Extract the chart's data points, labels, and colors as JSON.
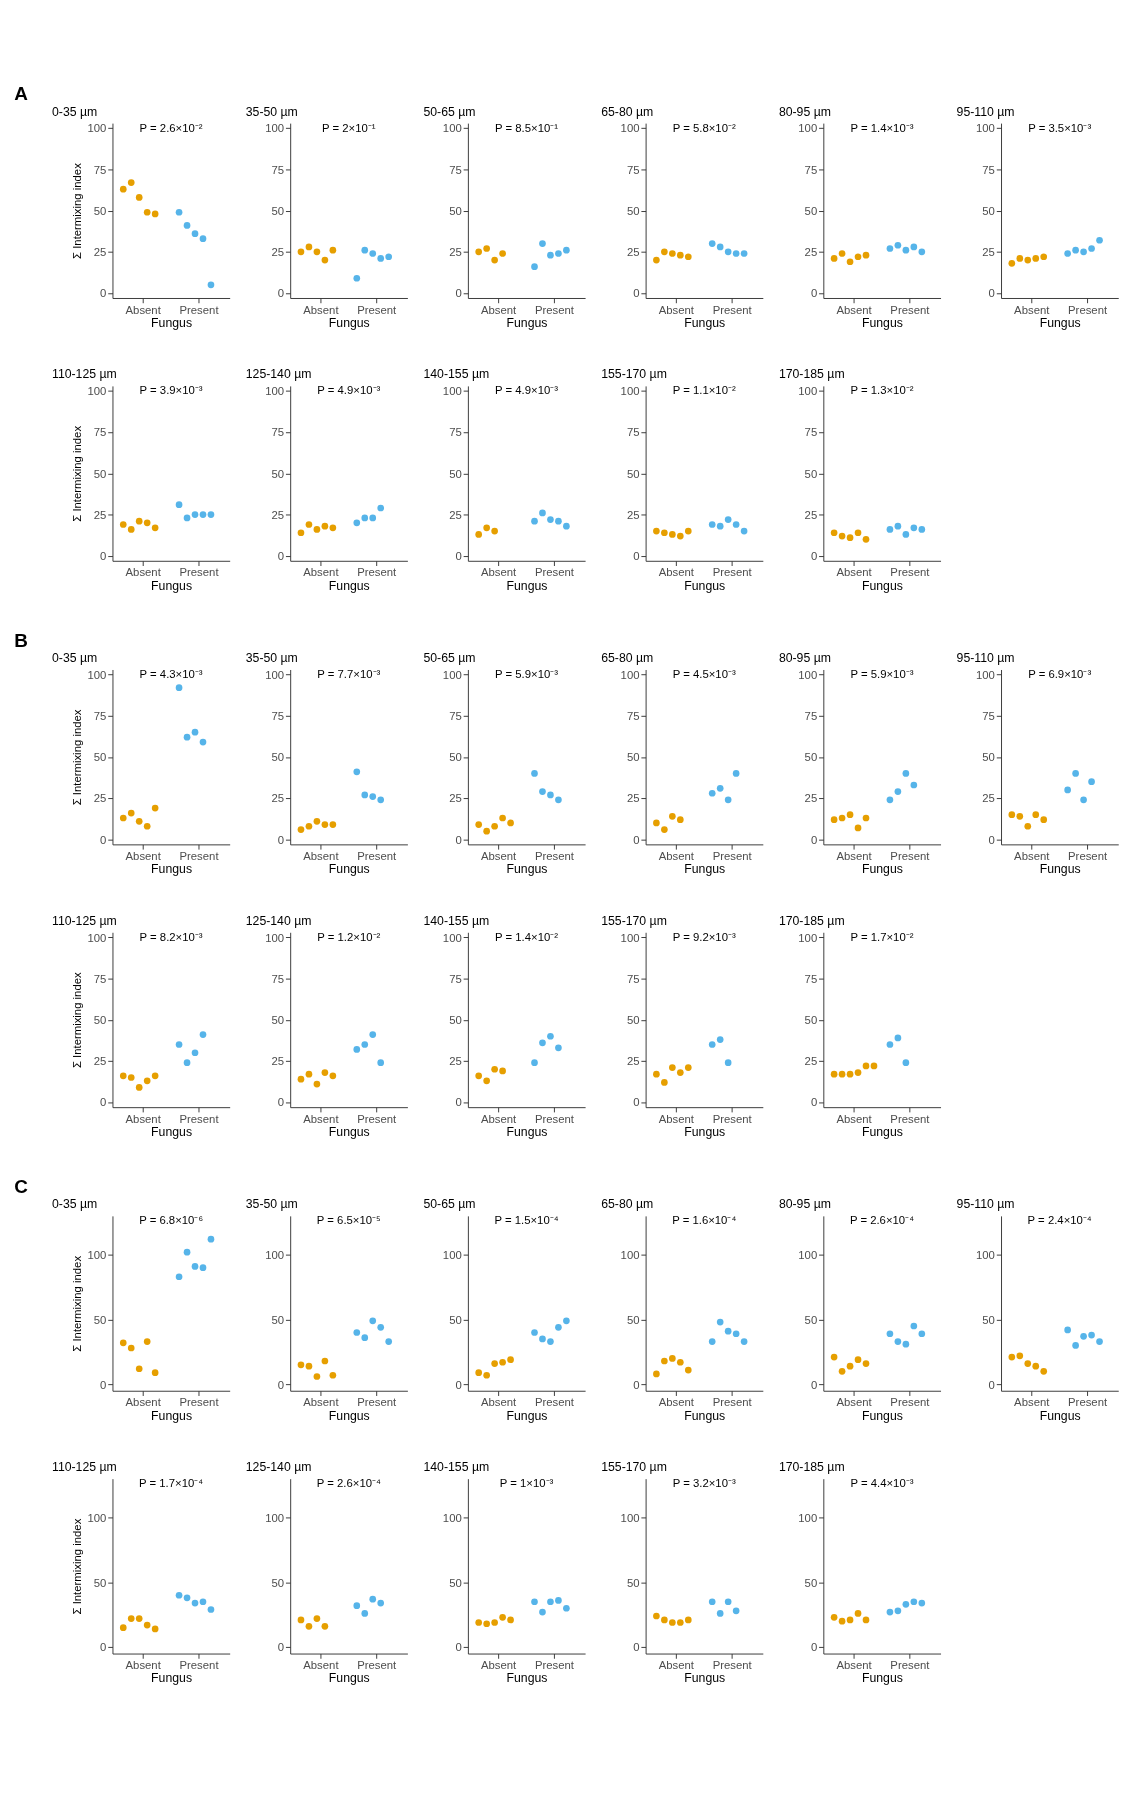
{
  "chart_data": [
    {
      "type": "scatter",
      "title": "0-35 µm",
      "ylabel": "Σ Intermixing index",
      "xlabel": "Fungus",
      "annotations": [
        "A",
        "P = 2.6×10⁻²"
      ],
      "categories": [
        "Absent",
        "Present"
      ],
      "ylim": [
        -3,
        103
      ],
      "yticks": [
        0,
        25,
        50,
        75,
        100
      ],
      "grid": false,
      "legend": false,
      "marker": "circle",
      "series": [
        {
          "color": "#e69f00",
          "x": [
            "Absent",
            "Absent",
            "Absent",
            "Absent",
            "Absent"
          ],
          "values": [
            63,
            67,
            58,
            49,
            48
          ]
        },
        {
          "color": "#56b4e9",
          "x": [
            "Present",
            "Present",
            "Present",
            "Present",
            "Present"
          ],
          "values": [
            49,
            41,
            36,
            33,
            5
          ]
        }
      ]
    },
    {
      "type": "scatter",
      "title": "35-50 µm",
      "xlabel": "Fungus",
      "annotations": [
        "P = 2×10⁻¹"
      ],
      "categories": [
        "Absent",
        "Present"
      ],
      "ylim": [
        -3,
        103
      ],
      "yticks": [
        0,
        25,
        50,
        75,
        100
      ],
      "grid": false,
      "legend": false,
      "marker": "circle",
      "series": [
        {
          "color": "#e69f00",
          "x": [
            "Absent",
            "Absent",
            "Absent",
            "Absent",
            "Absent"
          ],
          "values": [
            25,
            28,
            25,
            20,
            26
          ]
        },
        {
          "color": "#56b4e9",
          "x": [
            "Present",
            "Present",
            "Present",
            "Present",
            "Present"
          ],
          "values": [
            9,
            26,
            24,
            21,
            22
          ]
        }
      ]
    },
    {
      "type": "scatter",
      "title": "50-65 µm",
      "xlabel": "Fungus",
      "annotations": [
        "P = 8.5×10⁻¹"
      ],
      "categories": [
        "Absent",
        "Present"
      ],
      "ylim": [
        -3,
        103
      ],
      "yticks": [
        0,
        25,
        50,
        75,
        100
      ],
      "grid": false,
      "legend": false,
      "marker": "circle",
      "series": [
        {
          "color": "#e69f00",
          "x": [
            "Absent",
            "Absent",
            "Absent",
            "Absent"
          ],
          "values": [
            25,
            27,
            20,
            24
          ]
        },
        {
          "color": "#56b4e9",
          "x": [
            "Present",
            "Present",
            "Present",
            "Present",
            "Present"
          ],
          "values": [
            16,
            30,
            23,
            24,
            26
          ]
        }
      ]
    },
    {
      "type": "scatter",
      "title": "65-80 µm",
      "xlabel": "Fungus",
      "annotations": [
        "P = 5.8×10⁻²"
      ],
      "categories": [
        "Absent",
        "Present"
      ],
      "ylim": [
        -3,
        103
      ],
      "yticks": [
        0,
        25,
        50,
        75,
        100
      ],
      "grid": false,
      "legend": false,
      "marker": "circle",
      "series": [
        {
          "color": "#e69f00",
          "x": [
            "Absent",
            "Absent",
            "Absent",
            "Absent",
            "Absent"
          ],
          "values": [
            20,
            25,
            24,
            23,
            22
          ]
        },
        {
          "color": "#56b4e9",
          "x": [
            "Present",
            "Present",
            "Present",
            "Present",
            "Present"
          ],
          "values": [
            30,
            28,
            25,
            24,
            24
          ]
        }
      ]
    },
    {
      "type": "scatter",
      "title": "80-95 µm",
      "xlabel": "Fungus",
      "annotations": [
        "P = 1.4×10⁻³"
      ],
      "categories": [
        "Absent",
        "Present"
      ],
      "ylim": [
        -3,
        103
      ],
      "yticks": [
        0,
        25,
        50,
        75,
        100
      ],
      "grid": false,
      "legend": false,
      "marker": "circle",
      "series": [
        {
          "color": "#e69f00",
          "x": [
            "Absent",
            "Absent",
            "Absent",
            "Absent",
            "Absent"
          ],
          "values": [
            21,
            24,
            19,
            22,
            23
          ]
        },
        {
          "color": "#56b4e9",
          "x": [
            "Present",
            "Present",
            "Present",
            "Present",
            "Present"
          ],
          "values": [
            27,
            29,
            26,
            28,
            25
          ]
        }
      ]
    },
    {
      "type": "scatter",
      "title": "95-110 µm",
      "xlabel": "Fungus",
      "annotations": [
        "P = 3.5×10⁻³"
      ],
      "categories": [
        "Absent",
        "Present"
      ],
      "ylim": [
        -3,
        103
      ],
      "yticks": [
        0,
        25,
        50,
        75,
        100
      ],
      "grid": false,
      "legend": false,
      "marker": "circle",
      "series": [
        {
          "color": "#e69f00",
          "x": [
            "Absent",
            "Absent",
            "Absent",
            "Absent",
            "Absent"
          ],
          "values": [
            18,
            21,
            20,
            21,
            22
          ]
        },
        {
          "color": "#56b4e9",
          "x": [
            "Present",
            "Present",
            "Present",
            "Present",
            "Present"
          ],
          "values": [
            24,
            26,
            25,
            27,
            32
          ]
        }
      ]
    },
    {
      "type": "scatter",
      "title": "110-125 µm",
      "ylabel": "Σ Intermixing index",
      "xlabel": "Fungus",
      "annotations": [
        "P = 3.9×10⁻³"
      ],
      "categories": [
        "Absent",
        "Present"
      ],
      "ylim": [
        -3,
        103
      ],
      "yticks": [
        0,
        25,
        50,
        75,
        100
      ],
      "grid": false,
      "legend": false,
      "marker": "circle",
      "series": [
        {
          "color": "#e69f00",
          "x": [
            "Absent",
            "Absent",
            "Absent",
            "Absent",
            "Absent"
          ],
          "values": [
            19,
            16,
            21,
            20,
            17
          ]
        },
        {
          "color": "#56b4e9",
          "x": [
            "Present",
            "Present",
            "Present",
            "Present",
            "Present"
          ],
          "values": [
            31,
            23,
            25,
            25,
            25
          ]
        }
      ]
    },
    {
      "type": "scatter",
      "title": "125-140 µm",
      "xlabel": "Fungus",
      "annotations": [
        "P = 4.9×10⁻³"
      ],
      "categories": [
        "Absent",
        "Present"
      ],
      "ylim": [
        -3,
        103
      ],
      "yticks": [
        0,
        25,
        50,
        75,
        100
      ],
      "grid": false,
      "legend": false,
      "marker": "circle",
      "series": [
        {
          "color": "#e69f00",
          "x": [
            "Absent",
            "Absent",
            "Absent",
            "Absent",
            "Absent"
          ],
          "values": [
            14,
            19,
            16,
            18,
            17
          ]
        },
        {
          "color": "#56b4e9",
          "x": [
            "Present",
            "Present",
            "Present",
            "Present"
          ],
          "values": [
            20,
            23,
            23,
            29
          ]
        }
      ]
    },
    {
      "type": "scatter",
      "title": "140-155 µm",
      "xlabel": "Fungus",
      "annotations": [
        "P = 4.9×10⁻³"
      ],
      "categories": [
        "Absent",
        "Present"
      ],
      "ylim": [
        -3,
        103
      ],
      "yticks": [
        0,
        25,
        50,
        75,
        100
      ],
      "grid": false,
      "legend": false,
      "marker": "circle",
      "series": [
        {
          "color": "#e69f00",
          "x": [
            "Absent",
            "Absent",
            "Absent"
          ],
          "values": [
            13,
            17,
            15
          ]
        },
        {
          "color": "#56b4e9",
          "x": [
            "Present",
            "Present",
            "Present",
            "Present",
            "Present"
          ],
          "values": [
            21,
            26,
            22,
            21,
            18
          ]
        }
      ]
    },
    {
      "type": "scatter",
      "title": "155-170 µm",
      "xlabel": "Fungus",
      "annotations": [
        "P = 1.1×10⁻²"
      ],
      "categories": [
        "Absent",
        "Present"
      ],
      "ylim": [
        -3,
        103
      ],
      "yticks": [
        0,
        25,
        50,
        75,
        100
      ],
      "grid": false,
      "legend": false,
      "marker": "circle",
      "series": [
        {
          "color": "#e69f00",
          "x": [
            "Absent",
            "Absent",
            "Absent",
            "Absent",
            "Absent"
          ],
          "values": [
            15,
            14,
            13,
            12,
            15
          ]
        },
        {
          "color": "#56b4e9",
          "x": [
            "Present",
            "Present",
            "Present",
            "Present",
            "Present"
          ],
          "values": [
            19,
            18,
            22,
            19,
            15
          ]
        }
      ]
    },
    {
      "type": "scatter",
      "title": "170-185 µm",
      "xlabel": "Fungus",
      "annotations": [
        "P = 1.3×10⁻²"
      ],
      "categories": [
        "Absent",
        "Present"
      ],
      "ylim": [
        -3,
        103
      ],
      "yticks": [
        0,
        25,
        50,
        75,
        100
      ],
      "grid": false,
      "legend": false,
      "marker": "circle",
      "series": [
        {
          "color": "#e69f00",
          "x": [
            "Absent",
            "Absent",
            "Absent",
            "Absent",
            "Absent"
          ],
          "values": [
            14,
            12,
            11,
            14,
            10
          ]
        },
        {
          "color": "#56b4e9",
          "x": [
            "Present",
            "Present",
            "Present",
            "Present",
            "Present"
          ],
          "values": [
            16,
            18,
            13,
            17,
            16
          ]
        }
      ]
    },
    {
      "type": "scatter",
      "title": "0-35 µm",
      "ylabel": "Σ Intermixing index",
      "xlabel": "Fungus",
      "annotations": [
        "B",
        "P = 4.3×10⁻³"
      ],
      "categories": [
        "Absent",
        "Present"
      ],
      "ylim": [
        -3,
        103
      ],
      "yticks": [
        0,
        25,
        50,
        75,
        100
      ],
      "grid": false,
      "legend": false,
      "marker": "circle",
      "series": [
        {
          "color": "#e69f00",
          "x": [
            "Absent",
            "Absent",
            "Absent",
            "Absent",
            "Absent"
          ],
          "values": [
            13,
            16,
            11,
            8,
            19
          ]
        },
        {
          "color": "#56b4e9",
          "x": [
            "Present",
            "Present",
            "Present",
            "Present"
          ],
          "values": [
            92,
            62,
            65,
            59
          ]
        }
      ]
    },
    {
      "type": "scatter",
      "title": "35-50 µm",
      "xlabel": "Fungus",
      "annotations": [
        "P = 7.7×10⁻³"
      ],
      "categories": [
        "Absent",
        "Present"
      ],
      "ylim": [
        -3,
        103
      ],
      "yticks": [
        0,
        25,
        50,
        75,
        100
      ],
      "grid": false,
      "legend": false,
      "marker": "circle",
      "series": [
        {
          "color": "#e69f00",
          "x": [
            "Absent",
            "Absent",
            "Absent",
            "Absent",
            "Absent"
          ],
          "values": [
            6,
            8,
            11,
            9,
            9
          ]
        },
        {
          "color": "#56b4e9",
          "x": [
            "Present",
            "Present",
            "Present",
            "Present"
          ],
          "values": [
            41,
            27,
            26,
            24
          ]
        }
      ]
    },
    {
      "type": "scatter",
      "title": "50-65 µm",
      "xlabel": "Fungus",
      "annotations": [
        "P = 5.9×10⁻³"
      ],
      "categories": [
        "Absent",
        "Present"
      ],
      "ylim": [
        -3,
        103
      ],
      "yticks": [
        0,
        25,
        50,
        75,
        100
      ],
      "grid": false,
      "legend": false,
      "marker": "circle",
      "series": [
        {
          "color": "#e69f00",
          "x": [
            "Absent",
            "Absent",
            "Absent",
            "Absent",
            "Absent"
          ],
          "values": [
            9,
            5,
            8,
            13,
            10
          ]
        },
        {
          "color": "#56b4e9",
          "x": [
            "Present",
            "Present",
            "Present",
            "Present"
          ],
          "values": [
            40,
            29,
            27,
            24
          ]
        }
      ]
    },
    {
      "type": "scatter",
      "title": "65-80 µm",
      "xlabel": "Fungus",
      "annotations": [
        "P = 4.5×10⁻³"
      ],
      "categories": [
        "Absent",
        "Present"
      ],
      "ylim": [
        -3,
        103
      ],
      "yticks": [
        0,
        25,
        50,
        75,
        100
      ],
      "grid": false,
      "legend": false,
      "marker": "circle",
      "series": [
        {
          "color": "#e69f00",
          "x": [
            "Absent",
            "Absent",
            "Absent",
            "Absent"
          ],
          "values": [
            10,
            6,
            14,
            12
          ]
        },
        {
          "color": "#56b4e9",
          "x": [
            "Present",
            "Present",
            "Present",
            "Present"
          ],
          "values": [
            28,
            31,
            24,
            40
          ]
        }
      ]
    },
    {
      "type": "scatter",
      "title": "80-95 µm",
      "xlabel": "Fungus",
      "annotations": [
        "P = 5.9×10⁻³"
      ],
      "categories": [
        "Absent",
        "Present"
      ],
      "ylim": [
        -3,
        103
      ],
      "yticks": [
        0,
        25,
        50,
        75,
        100
      ],
      "grid": false,
      "legend": false,
      "marker": "circle",
      "series": [
        {
          "color": "#e69f00",
          "x": [
            "Absent",
            "Absent",
            "Absent",
            "Absent",
            "Absent"
          ],
          "values": [
            12,
            13,
            15,
            7,
            13
          ]
        },
        {
          "color": "#56b4e9",
          "x": [
            "Present",
            "Present",
            "Present",
            "Present"
          ],
          "values": [
            24,
            29,
            40,
            33
          ]
        }
      ]
    },
    {
      "type": "scatter",
      "title": "95-110 µm",
      "xlabel": "Fungus",
      "annotations": [
        "P = 6.9×10⁻³"
      ],
      "categories": [
        "Absent",
        "Present"
      ],
      "ylim": [
        -3,
        103
      ],
      "yticks": [
        0,
        25,
        50,
        75,
        100
      ],
      "grid": false,
      "legend": false,
      "marker": "circle",
      "series": [
        {
          "color": "#e69f00",
          "x": [
            "Absent",
            "Absent",
            "Absent",
            "Absent",
            "Absent"
          ],
          "values": [
            15,
            14,
            8,
            15,
            12
          ]
        },
        {
          "color": "#56b4e9",
          "x": [
            "Present",
            "Present",
            "Present",
            "Present"
          ],
          "values": [
            30,
            40,
            24,
            35
          ]
        }
      ]
    },
    {
      "type": "scatter",
      "title": "110-125 µm",
      "ylabel": "Σ Intermixing index",
      "xlabel": "Fungus",
      "annotations": [
        "P = 8.2×10⁻³"
      ],
      "categories": [
        "Absent",
        "Present"
      ],
      "ylim": [
        -3,
        103
      ],
      "yticks": [
        0,
        25,
        50,
        75,
        100
      ],
      "grid": false,
      "legend": false,
      "marker": "circle",
      "series": [
        {
          "color": "#e69f00",
          "x": [
            "Absent",
            "Absent",
            "Absent",
            "Absent",
            "Absent"
          ],
          "values": [
            16,
            15,
            9,
            13,
            16
          ]
        },
        {
          "color": "#56b4e9",
          "x": [
            "Present",
            "Present",
            "Present",
            "Present"
          ],
          "values": [
            35,
            24,
            30,
            41
          ]
        }
      ]
    },
    {
      "type": "scatter",
      "title": "125-140 µm",
      "xlabel": "Fungus",
      "annotations": [
        "P = 1.2×10⁻²"
      ],
      "categories": [
        "Absent",
        "Present"
      ],
      "ylim": [
        -3,
        103
      ],
      "yticks": [
        0,
        25,
        50,
        75,
        100
      ],
      "grid": false,
      "legend": false,
      "marker": "circle",
      "series": [
        {
          "color": "#e69f00",
          "x": [
            "Absent",
            "Absent",
            "Absent",
            "Absent",
            "Absent"
          ],
          "values": [
            14,
            17,
            11,
            18,
            16
          ]
        },
        {
          "color": "#56b4e9",
          "x": [
            "Present",
            "Present",
            "Present",
            "Present"
          ],
          "values": [
            32,
            35,
            41,
            24
          ]
        }
      ]
    },
    {
      "type": "scatter",
      "title": "140-155 µm",
      "xlabel": "Fungus",
      "annotations": [
        "P = 1.4×10⁻²"
      ],
      "categories": [
        "Absent",
        "Present"
      ],
      "ylim": [
        -3,
        103
      ],
      "yticks": [
        0,
        25,
        50,
        75,
        100
      ],
      "grid": false,
      "legend": false,
      "marker": "circle",
      "series": [
        {
          "color": "#e69f00",
          "x": [
            "Absent",
            "Absent",
            "Absent",
            "Absent"
          ],
          "values": [
            16,
            13,
            20,
            19
          ]
        },
        {
          "color": "#56b4e9",
          "x": [
            "Present",
            "Present",
            "Present",
            "Present"
          ],
          "values": [
            24,
            36,
            40,
            33
          ]
        }
      ]
    },
    {
      "type": "scatter",
      "title": "155-170 µm",
      "xlabel": "Fungus",
      "annotations": [
        "P = 9.2×10⁻³"
      ],
      "categories": [
        "Absent",
        "Present"
      ],
      "ylim": [
        -3,
        103
      ],
      "yticks": [
        0,
        25,
        50,
        75,
        100
      ],
      "grid": false,
      "legend": false,
      "marker": "circle",
      "series": [
        {
          "color": "#e69f00",
          "x": [
            "Absent",
            "Absent",
            "Absent",
            "Absent",
            "Absent"
          ],
          "values": [
            17,
            12,
            21,
            18,
            21
          ]
        },
        {
          "color": "#56b4e9",
          "x": [
            "Present",
            "Present",
            "Present"
          ],
          "values": [
            35,
            38,
            24
          ]
        }
      ]
    },
    {
      "type": "scatter",
      "title": "170-185 µm",
      "xlabel": "Fungus",
      "annotations": [
        "P = 1.7×10⁻²"
      ],
      "categories": [
        "Absent",
        "Present"
      ],
      "ylim": [
        -3,
        103
      ],
      "yticks": [
        0,
        25,
        50,
        75,
        100
      ],
      "grid": false,
      "legend": false,
      "marker": "circle",
      "series": [
        {
          "color": "#e69f00",
          "x": [
            "Absent",
            "Absent",
            "Absent",
            "Absent",
            "Absent",
            "Absent"
          ],
          "values": [
            17,
            17,
            17,
            18,
            22,
            22
          ]
        },
        {
          "color": "#56b4e9",
          "x": [
            "Present",
            "Present",
            "Present"
          ],
          "values": [
            35,
            39,
            24
          ]
        }
      ]
    },
    {
      "type": "scatter",
      "title": "0-35 µm",
      "ylabel": "Σ Intermixing index",
      "xlabel": "Fungus",
      "annotations": [
        "C",
        "P = 6.8×10⁻⁶"
      ],
      "categories": [
        "Absent",
        "Present"
      ],
      "ylim": [
        -5,
        130
      ],
      "yticks": [
        0,
        50,
        100
      ],
      "grid": false,
      "legend": false,
      "marker": "circle",
      "series": [
        {
          "color": "#e69f00",
          "x": [
            "Absent",
            "Absent",
            "Absent",
            "Absent",
            "Absent"
          ],
          "values": [
            32,
            28,
            12,
            33,
            9
          ]
        },
        {
          "color": "#56b4e9",
          "x": [
            "Present",
            "Present",
            "Present",
            "Present",
            "Present"
          ],
          "values": [
            83,
            102,
            91,
            90,
            112
          ]
        }
      ]
    },
    {
      "type": "scatter",
      "title": "35-50 µm",
      "xlabel": "Fungus",
      "annotations": [
        "P = 6.5×10⁻⁵"
      ],
      "categories": [
        "Absent",
        "Present"
      ],
      "ylim": [
        -5,
        130
      ],
      "yticks": [
        0,
        50,
        100
      ],
      "grid": false,
      "legend": false,
      "marker": "circle",
      "series": [
        {
          "color": "#e69f00",
          "x": [
            "Absent",
            "Absent",
            "Absent",
            "Absent",
            "Absent"
          ],
          "values": [
            15,
            14,
            6,
            18,
            7
          ]
        },
        {
          "color": "#56b4e9",
          "x": [
            "Present",
            "Present",
            "Present",
            "Present",
            "Present"
          ],
          "values": [
            40,
            36,
            49,
            44,
            33
          ]
        }
      ]
    },
    {
      "type": "scatter",
      "title": "50-65 µm",
      "xlabel": "Fungus",
      "annotations": [
        "P = 1.5×10⁻⁴"
      ],
      "categories": [
        "Absent",
        "Present"
      ],
      "ylim": [
        -5,
        130
      ],
      "yticks": [
        0,
        50,
        100
      ],
      "grid": false,
      "legend": false,
      "marker": "circle",
      "series": [
        {
          "color": "#e69f00",
          "x": [
            "Absent",
            "Absent",
            "Absent",
            "Absent",
            "Absent"
          ],
          "values": [
            9,
            7,
            16,
            17,
            19
          ]
        },
        {
          "color": "#56b4e9",
          "x": [
            "Present",
            "Present",
            "Present",
            "Present",
            "Present"
          ],
          "values": [
            40,
            35,
            33,
            44,
            49
          ]
        }
      ]
    },
    {
      "type": "scatter",
      "title": "65-80 µm",
      "xlabel": "Fungus",
      "annotations": [
        "P = 1.6×10⁻⁴"
      ],
      "categories": [
        "Absent",
        "Present"
      ],
      "ylim": [
        -5,
        130
      ],
      "yticks": [
        0,
        50,
        100
      ],
      "grid": false,
      "legend": false,
      "marker": "circle",
      "series": [
        {
          "color": "#e69f00",
          "x": [
            "Absent",
            "Absent",
            "Absent",
            "Absent",
            "Absent"
          ],
          "values": [
            8,
            18,
            20,
            17,
            11
          ]
        },
        {
          "color": "#56b4e9",
          "x": [
            "Present",
            "Present",
            "Present",
            "Present",
            "Present"
          ],
          "values": [
            33,
            48,
            41,
            39,
            33
          ]
        }
      ]
    },
    {
      "type": "scatter",
      "title": "80-95 µm",
      "xlabel": "Fungus",
      "annotations": [
        "P = 2.6×10⁻⁴"
      ],
      "categories": [
        "Absent",
        "Present"
      ],
      "ylim": [
        -5,
        130
      ],
      "yticks": [
        0,
        50,
        100
      ],
      "grid": false,
      "legend": false,
      "marker": "circle",
      "series": [
        {
          "color": "#e69f00",
          "x": [
            "Absent",
            "Absent",
            "Absent",
            "Absent",
            "Absent"
          ],
          "values": [
            21,
            10,
            14,
            19,
            16
          ]
        },
        {
          "color": "#56b4e9",
          "x": [
            "Present",
            "Present",
            "Present",
            "Present",
            "Present"
          ],
          "values": [
            39,
            33,
            31,
            45,
            39
          ]
        }
      ]
    },
    {
      "type": "scatter",
      "title": "95-110 µm",
      "xlabel": "Fungus",
      "annotations": [
        "P = 2.4×10⁻⁴"
      ],
      "categories": [
        "Absent",
        "Present"
      ],
      "ylim": [
        -5,
        130
      ],
      "yticks": [
        0,
        50,
        100
      ],
      "grid": false,
      "legend": false,
      "marker": "circle",
      "series": [
        {
          "color": "#e69f00",
          "x": [
            "Absent",
            "Absent",
            "Absent",
            "Absent",
            "Absent"
          ],
          "values": [
            21,
            22,
            16,
            14,
            10
          ]
        },
        {
          "color": "#56b4e9",
          "x": [
            "Present",
            "Present",
            "Present",
            "Present",
            "Present"
          ],
          "values": [
            42,
            30,
            37,
            38,
            33
          ]
        }
      ]
    },
    {
      "type": "scatter",
      "title": "110-125 µm",
      "ylabel": "Σ Intermixing index",
      "xlabel": "Fungus",
      "annotations": [
        "P = 1.7×10⁻⁴"
      ],
      "categories": [
        "Absent",
        "Present"
      ],
      "ylim": [
        -5,
        130
      ],
      "yticks": [
        0,
        50,
        100
      ],
      "grid": false,
      "legend": false,
      "marker": "circle",
      "series": [
        {
          "color": "#e69f00",
          "x": [
            "Absent",
            "Absent",
            "Absent",
            "Absent",
            "Absent"
          ],
          "values": [
            15,
            22,
            22,
            17,
            14
          ]
        },
        {
          "color": "#56b4e9",
          "x": [
            "Present",
            "Present",
            "Present",
            "Present",
            "Present"
          ],
          "values": [
            40,
            38,
            34,
            35,
            29
          ]
        }
      ]
    },
    {
      "type": "scatter",
      "title": "125-140 µm",
      "xlabel": "Fungus",
      "annotations": [
        "P = 2.6×10⁻⁴"
      ],
      "categories": [
        "Absent",
        "Present"
      ],
      "ylim": [
        -5,
        130
      ],
      "yticks": [
        0,
        50,
        100
      ],
      "grid": false,
      "legend": false,
      "marker": "circle",
      "series": [
        {
          "color": "#e69f00",
          "x": [
            "Absent",
            "Absent",
            "Absent",
            "Absent"
          ],
          "values": [
            21,
            16,
            22,
            16
          ]
        },
        {
          "color": "#56b4e9",
          "x": [
            "Present",
            "Present",
            "Present",
            "Present"
          ],
          "values": [
            32,
            26,
            37,
            34
          ]
        }
      ]
    },
    {
      "type": "scatter",
      "title": "140-155 µm",
      "xlabel": "Fungus",
      "annotations": [
        "P = 1×10⁻³"
      ],
      "categories": [
        "Absent",
        "Present"
      ],
      "ylim": [
        -5,
        130
      ],
      "yticks": [
        0,
        50,
        100
      ],
      "grid": false,
      "legend": false,
      "marker": "circle",
      "series": [
        {
          "color": "#e69f00",
          "x": [
            "Absent",
            "Absent",
            "Absent",
            "Absent",
            "Absent"
          ],
          "values": [
            19,
            18,
            19,
            23,
            21
          ]
        },
        {
          "color": "#56b4e9",
          "x": [
            "Present",
            "Present",
            "Present",
            "Present",
            "Present"
          ],
          "values": [
            35,
            27,
            35,
            36,
            30
          ]
        }
      ]
    },
    {
      "type": "scatter",
      "title": "155-170 µm",
      "xlabel": "Fungus",
      "annotations": [
        "P = 3.2×10⁻³"
      ],
      "categories": [
        "Absent",
        "Present"
      ],
      "ylim": [
        -5,
        130
      ],
      "yticks": [
        0,
        50,
        100
      ],
      "grid": false,
      "legend": false,
      "marker": "circle",
      "series": [
        {
          "color": "#e69f00",
          "x": [
            "Absent",
            "Absent",
            "Absent",
            "Absent",
            "Absent"
          ],
          "values": [
            24,
            21,
            19,
            19,
            21
          ]
        },
        {
          "color": "#56b4e9",
          "x": [
            "Present",
            "Present",
            "Present",
            "Present"
          ],
          "values": [
            35,
            26,
            35,
            28
          ]
        }
      ]
    },
    {
      "type": "scatter",
      "title": "170-185 µm",
      "xlabel": "Fungus",
      "annotations": [
        "P = 4.4×10⁻³"
      ],
      "categories": [
        "Absent",
        "Present"
      ],
      "ylim": [
        -5,
        130
      ],
      "yticks": [
        0,
        50,
        100
      ],
      "grid": false,
      "legend": false,
      "marker": "circle",
      "series": [
        {
          "color": "#e69f00",
          "x": [
            "Absent",
            "Absent",
            "Absent",
            "Absent",
            "Absent"
          ],
          "values": [
            23,
            20,
            21,
            26,
            21
          ]
        },
        {
          "color": "#56b4e9",
          "x": [
            "Present",
            "Present",
            "Present",
            "Present",
            "Present"
          ],
          "values": [
            27,
            28,
            33,
            35,
            34
          ]
        }
      ]
    }
  ]
}
